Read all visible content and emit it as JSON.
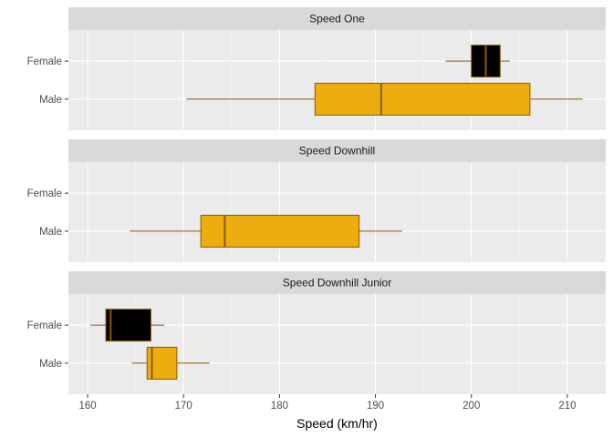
{
  "chart_data": {
    "type": "boxplot",
    "orientation": "horizontal",
    "facet_layout": "stacked",
    "xlabel": "Speed (km/hr)",
    "ylabel": "",
    "xlim": [
      158,
      214
    ],
    "x_ticks": [
      160,
      170,
      180,
      190,
      200,
      210
    ],
    "x_tick_labels": [
      "160",
      "170",
      "180",
      "190",
      "200",
      "210"
    ],
    "categories": [
      "Female",
      "Male"
    ],
    "colors": {
      "Female": "#000000",
      "Male": "#EEAD0E",
      "outline": "#8B5A00",
      "panel_bg": "#EBEBEB",
      "strip_bg": "#D9D9D9",
      "grid_major": "#FFFFFF",
      "grid_minor": "#F5F5F5"
    },
    "panels": [
      {
        "title": "Speed One",
        "boxes": [
          {
            "group": "Female",
            "min": 197.3,
            "q1": 200.0,
            "median": 201.5,
            "q3": 203.0,
            "max": 204.0
          },
          {
            "group": "Male",
            "min": 170.3,
            "q1": 183.7,
            "median": 190.6,
            "q3": 206.1,
            "max": 211.6
          }
        ]
      },
      {
        "title": "Speed Downhill",
        "boxes": [
          {
            "group": "Male",
            "min": 164.4,
            "q1": 171.8,
            "median": 174.3,
            "q3": 188.3,
            "max": 192.8
          }
        ]
      },
      {
        "title": "Speed Downhill Junior",
        "boxes": [
          {
            "group": "Female",
            "min": 160.3,
            "q1": 161.9,
            "median": 162.4,
            "q3": 166.6,
            "max": 168.0
          },
          {
            "group": "Male",
            "min": 164.6,
            "q1": 166.2,
            "median": 166.7,
            "q3": 169.3,
            "max": 172.7
          }
        ]
      }
    ]
  }
}
